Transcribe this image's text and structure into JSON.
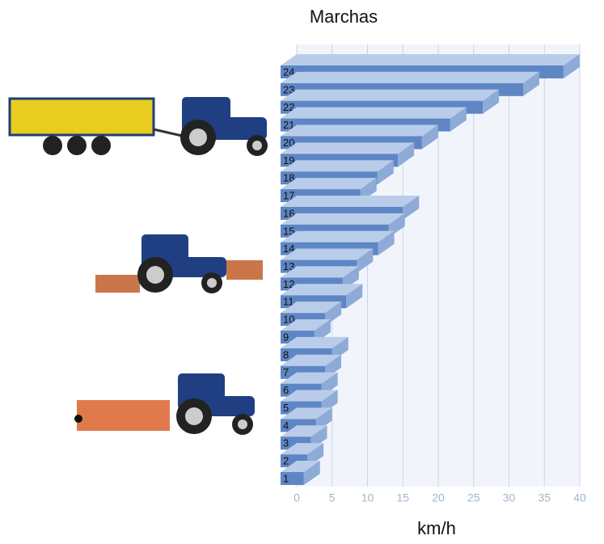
{
  "chart_data": {
    "type": "bar",
    "orientation": "horizontal",
    "title": "Marchas",
    "xlabel": "km/h",
    "categories": [
      "1",
      "2",
      "3",
      "4",
      "5",
      "6",
      "7",
      "8",
      "9",
      "10",
      "11",
      "12",
      "13",
      "14",
      "15",
      "16",
      "17",
      "18",
      "19",
      "20",
      "21",
      "22",
      "23",
      "24"
    ],
    "values": [
      1,
      1.5,
      2,
      2.7,
      3.5,
      3.5,
      4,
      5,
      2.5,
      4,
      7,
      6.5,
      8.5,
      11.5,
      13,
      15,
      9,
      11.4,
      14.3,
      17.7,
      21.7,
      26.3,
      32,
      37.7
    ],
    "color": "#5f86c4",
    "xlim": [
      0,
      40
    ],
    "xticks": [
      0,
      5,
      10,
      15,
      20,
      25,
      30,
      35,
      40
    ],
    "grid": true
  }
}
